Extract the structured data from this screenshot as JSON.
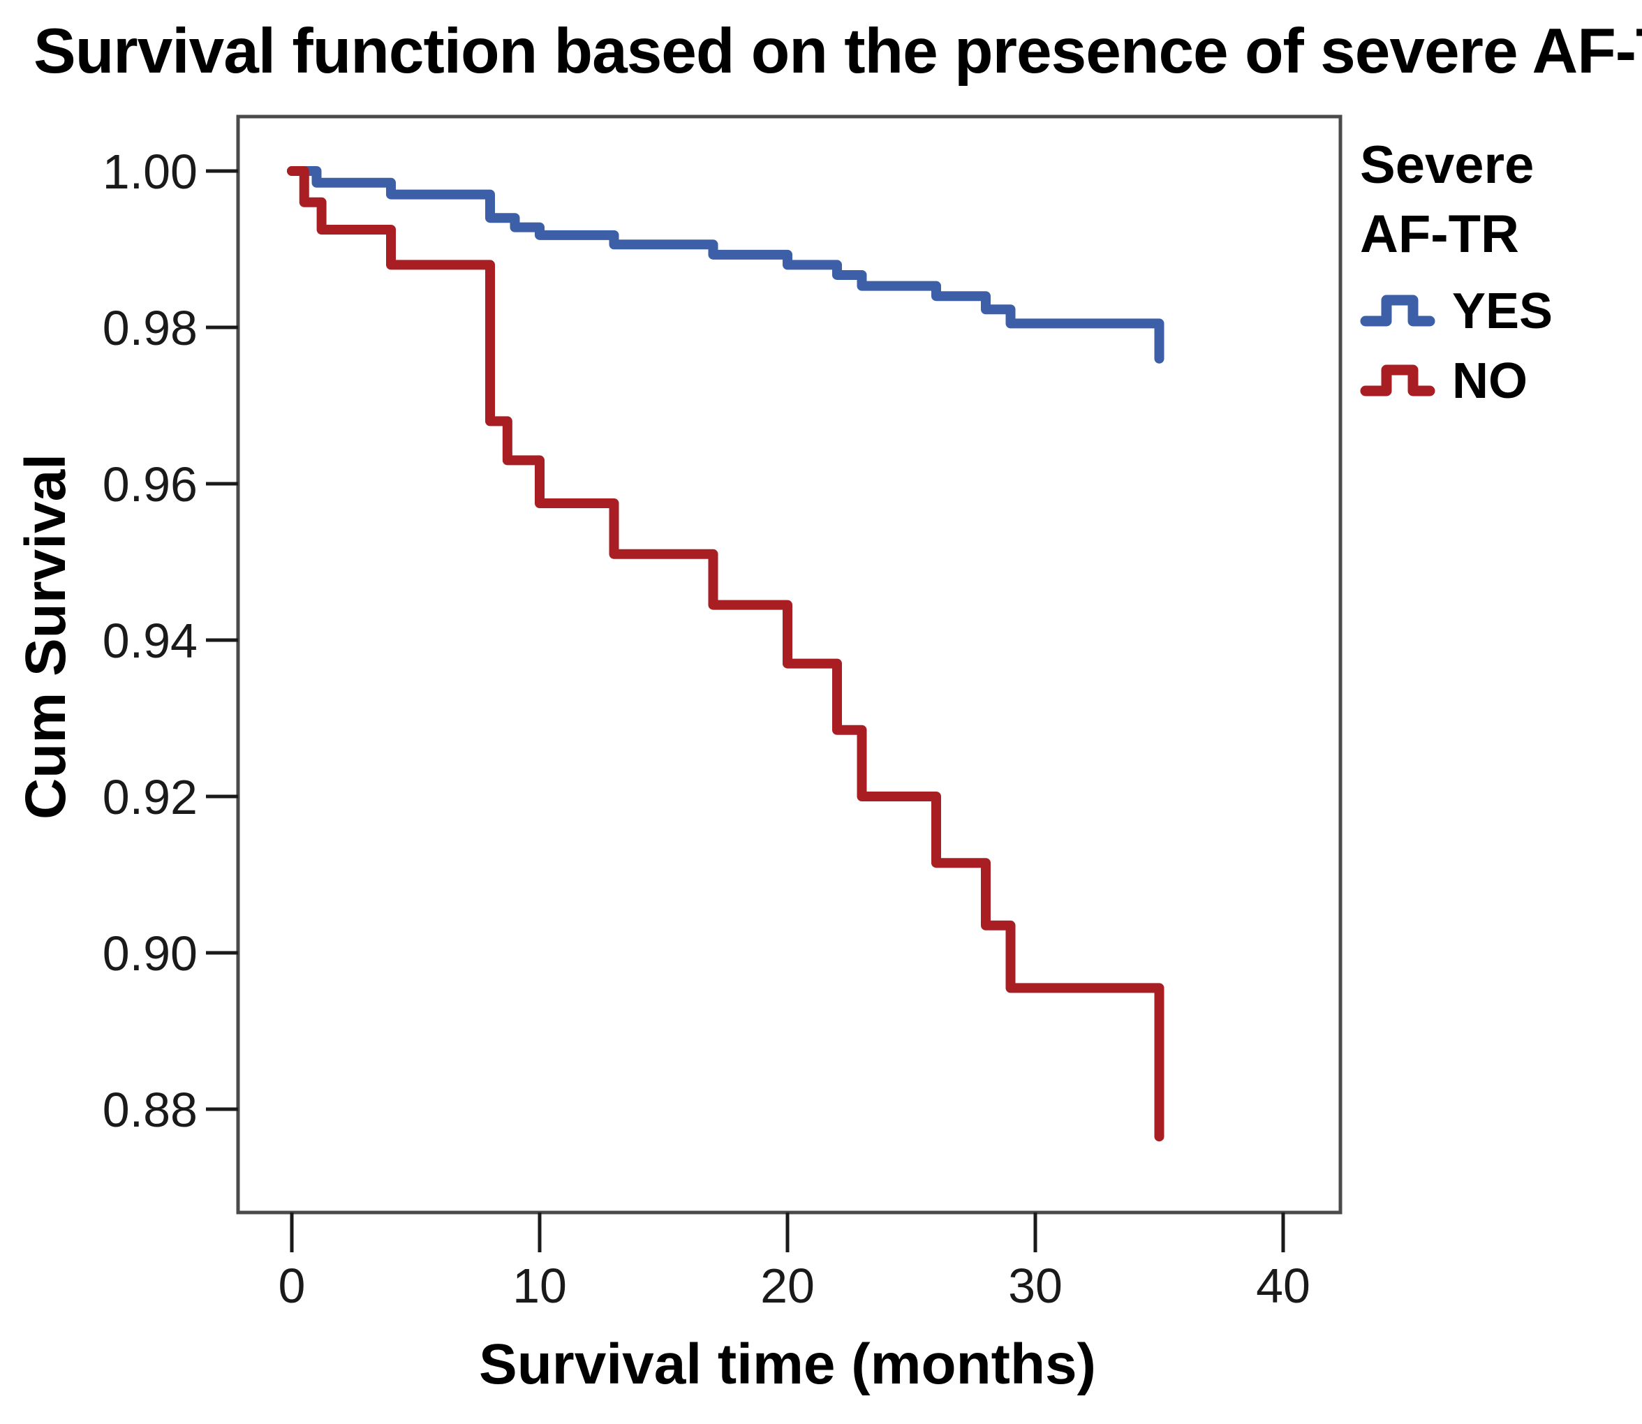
{
  "title": "Survival function based on the presence of severe AF-TR",
  "chart_data": {
    "type": "line",
    "subtype": "kaplan-meier-step",
    "title": "Survival function based on the presence of severe AF-TR",
    "xlabel": "Survival time (months)",
    "ylabel": "Cum Survival",
    "x_ticks": [
      "0",
      "10",
      "20",
      "30",
      "40"
    ],
    "y_ticks": [
      "1.00",
      "0.98",
      "0.96",
      "0.94",
      "0.92",
      "0.90",
      "0.88"
    ],
    "xlim": [
      -2.2,
      42.3
    ],
    "ylim": [
      0.867,
      1.007
    ],
    "grid": false,
    "legend": {
      "title_lines": [
        "Severe",
        "AF-TR"
      ],
      "position": "right-top"
    },
    "series": [
      {
        "name": "YES",
        "color": "#3d5fa8",
        "points": [
          [
            0,
            1.0
          ],
          [
            1,
            0.9985
          ],
          [
            4,
            0.997
          ],
          [
            8,
            0.994
          ],
          [
            9,
            0.9928
          ],
          [
            10,
            0.9918
          ],
          [
            13,
            0.9906
          ],
          [
            17,
            0.9893
          ],
          [
            20,
            0.988
          ],
          [
            22,
            0.9867
          ],
          [
            23,
            0.9853
          ],
          [
            26,
            0.984
          ],
          [
            28,
            0.9823
          ],
          [
            29,
            0.9805
          ],
          [
            35,
            0.976
          ]
        ]
      },
      {
        "name": "NO",
        "color": "#a81e23",
        "points": [
          [
            0,
            1.0
          ],
          [
            0.5,
            0.996
          ],
          [
            1.2,
            0.9925
          ],
          [
            4,
            0.988
          ],
          [
            8,
            0.968
          ],
          [
            8.7,
            0.963
          ],
          [
            10,
            0.9575
          ],
          [
            13,
            0.951
          ],
          [
            17,
            0.9445
          ],
          [
            20,
            0.937
          ],
          [
            22,
            0.9285
          ],
          [
            23,
            0.92
          ],
          [
            26,
            0.9115
          ],
          [
            28,
            0.9035
          ],
          [
            29,
            0.8955
          ],
          [
            35,
            0.8765
          ]
        ]
      }
    ]
  }
}
